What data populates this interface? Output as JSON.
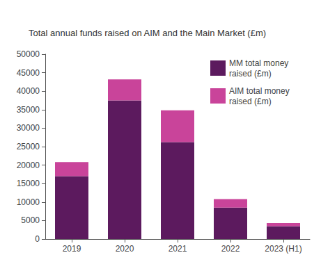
{
  "chart_data": {
    "type": "bar",
    "title": "Total annual funds raised on AIM and the Main Market (£m)",
    "categories": [
      "2019",
      "2020",
      "2021",
      "2022",
      "2023 (H1)"
    ],
    "series": [
      {
        "name": "MM total money raised (£m)",
        "color": "#5c1a5e",
        "values": [
          17000,
          37500,
          26200,
          8500,
          3500
        ]
      },
      {
        "name": "AIM total money raised (£m)",
        "color": "#c9449a",
        "values": [
          3800,
          5700,
          8600,
          2300,
          800
        ]
      }
    ],
    "stacked": true,
    "ylim": [
      0,
      50000
    ],
    "yticks": [
      0,
      5000,
      10000,
      15000,
      20000,
      25000,
      30000,
      35000,
      40000,
      45000,
      50000
    ],
    "grid": false,
    "legend": "top-right"
  }
}
